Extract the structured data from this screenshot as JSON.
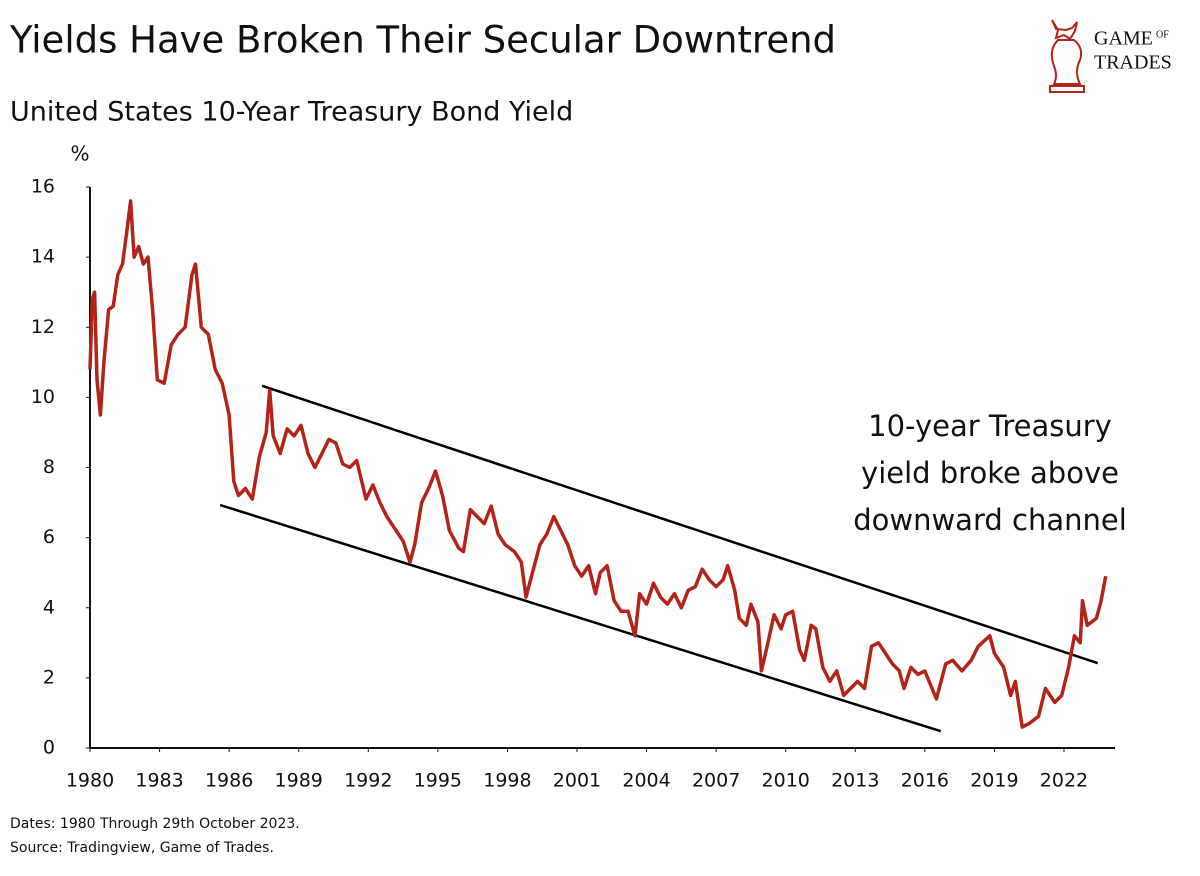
{
  "chart_data": {
    "type": "line",
    "title": "Yields Have Broken Their Secular Downtrend",
    "subtitle": "United States 10-Year Treasury Bond Yield",
    "y_label": "%",
    "annotation": [
      "10-year Treasury",
      "yield broke above",
      "downward channel"
    ],
    "notes": [
      "Dates: 1980 Through 29th October 2023.",
      "Source: Tradingview, Game of Trades."
    ],
    "logo": [
      "GAME",
      "OF",
      "TRADES"
    ],
    "xlim": [
      1980,
      2024.2
    ],
    "xticks": [
      1980,
      1983,
      1986,
      1989,
      1992,
      1995,
      1998,
      2001,
      2004,
      2007,
      2010,
      2013,
      2016,
      2019,
      2022
    ],
    "ylim": [
      0,
      16
    ],
    "yticks": [
      0,
      2,
      4,
      6,
      8,
      10,
      12,
      14,
      16
    ],
    "grid": false,
    "channel_color": "#000000",
    "channel": [
      {
        "x": [
          1987.42,
          2023.46
        ],
        "y": [
          10.33,
          2.42
        ]
      },
      {
        "x": [
          1985.61,
          2016.69
        ],
        "y": [
          6.93,
          0.48
        ]
      }
    ],
    "series": [
      {
        "color": "#b22418",
        "x": [
          1980.0,
          1980.1,
          1980.2,
          1980.3,
          1980.45,
          1980.6,
          1980.8,
          1981.0,
          1981.2,
          1981.4,
          1981.6,
          1981.75,
          1981.9,
          1982.1,
          1982.3,
          1982.5,
          1982.7,
          1982.9,
          1983.2,
          1983.5,
          1983.8,
          1984.1,
          1984.4,
          1984.55,
          1984.8,
          1985.1,
          1985.4,
          1985.7,
          1986.0,
          1986.2,
          1986.4,
          1986.7,
          1987.0,
          1987.3,
          1987.6,
          1987.75,
          1987.9,
          1988.2,
          1988.5,
          1988.8,
          1989.1,
          1989.4,
          1989.7,
          1990.0,
          1990.3,
          1990.6,
          1990.9,
          1991.2,
          1991.5,
          1991.9,
          1992.2,
          1992.5,
          1992.8,
          1993.1,
          1993.5,
          1993.8,
          1994.0,
          1994.3,
          1994.6,
          1994.9,
          1995.2,
          1995.5,
          1995.9,
          1996.1,
          1996.4,
          1996.7,
          1997.0,
          1997.3,
          1997.6,
          1997.9,
          1998.3,
          1998.6,
          1998.8,
          1999.0,
          1999.4,
          1999.7,
          2000.0,
          2000.3,
          2000.6,
          2000.9,
          2001.2,
          2001.5,
          2001.8,
          2002.0,
          2002.3,
          2002.6,
          2002.9,
          2003.2,
          2003.5,
          2003.7,
          2004.0,
          2004.3,
          2004.6,
          2004.9,
          2005.2,
          2005.5,
          2005.8,
          2006.1,
          2006.4,
          2006.7,
          2007.0,
          2007.3,
          2007.5,
          2007.8,
          2008.0,
          2008.3,
          2008.5,
          2008.8,
          2008.95,
          2009.2,
          2009.5,
          2009.8,
          2010.0,
          2010.3,
          2010.6,
          2010.8,
          2011.1,
          2011.3,
          2011.6,
          2011.9,
          2012.2,
          2012.5,
          2012.8,
          2013.1,
          2013.4,
          2013.7,
          2014.0,
          2014.3,
          2014.6,
          2014.9,
          2015.1,
          2015.4,
          2015.7,
          2016.0,
          2016.5,
          2016.9,
          2017.2,
          2017.6,
          2018.0,
          2018.3,
          2018.8,
          2019.0,
          2019.4,
          2019.7,
          2019.9,
          2020.2,
          2020.5,
          2020.9,
          2021.2,
          2021.6,
          2021.9,
          2022.2,
          2022.45,
          2022.7,
          2022.8,
          2023.0,
          2023.2,
          2023.4,
          2023.6,
          2023.8
        ],
        "values": [
          10.8,
          12.8,
          13.0,
          10.5,
          9.5,
          11.0,
          12.5,
          12.6,
          13.5,
          13.8,
          14.8,
          15.6,
          14.0,
          14.3,
          13.8,
          14.0,
          12.5,
          10.5,
          10.4,
          11.5,
          11.8,
          12.0,
          13.5,
          13.8,
          12.0,
          11.8,
          10.8,
          10.4,
          9.5,
          7.6,
          7.2,
          7.4,
          7.1,
          8.3,
          9.0,
          10.2,
          8.9,
          8.4,
          9.1,
          8.9,
          9.2,
          8.4,
          8.0,
          8.4,
          8.8,
          8.7,
          8.1,
          8.0,
          8.2,
          7.1,
          7.5,
          7.0,
          6.6,
          6.3,
          5.9,
          5.3,
          5.8,
          7.0,
          7.4,
          7.9,
          7.2,
          6.2,
          5.7,
          5.6,
          6.8,
          6.6,
          6.4,
          6.9,
          6.1,
          5.8,
          5.6,
          5.3,
          4.3,
          4.8,
          5.8,
          6.1,
          6.6,
          6.2,
          5.8,
          5.2,
          4.9,
          5.2,
          4.4,
          5.0,
          5.2,
          4.2,
          3.9,
          3.9,
          3.2,
          4.4,
          4.1,
          4.7,
          4.3,
          4.1,
          4.4,
          4.0,
          4.5,
          4.6,
          5.1,
          4.8,
          4.6,
          4.8,
          5.2,
          4.5,
          3.7,
          3.5,
          4.1,
          3.6,
          2.2,
          2.9,
          3.8,
          3.4,
          3.8,
          3.9,
          2.8,
          2.5,
          3.5,
          3.4,
          2.3,
          1.9,
          2.2,
          1.5,
          1.7,
          1.9,
          1.7,
          2.9,
          3.0,
          2.7,
          2.4,
          2.2,
          1.7,
          2.3,
          2.1,
          2.2,
          1.4,
          2.4,
          2.5,
          2.2,
          2.5,
          2.9,
          3.2,
          2.7,
          2.3,
          1.5,
          1.9,
          0.6,
          0.7,
          0.9,
          1.7,
          1.3,
          1.5,
          2.3,
          3.2,
          3.0,
          4.2,
          3.5,
          3.6,
          3.7,
          4.2,
          4.9
        ]
      }
    ]
  }
}
